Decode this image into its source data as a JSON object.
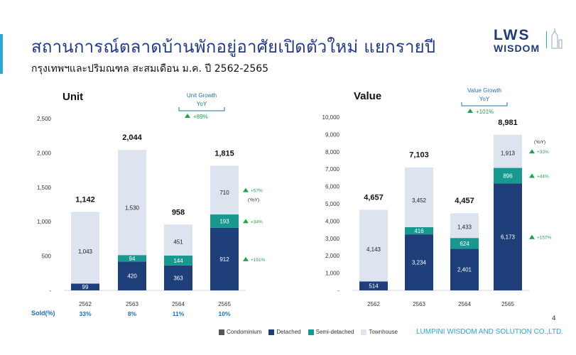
{
  "title": "สถานการณ์ตลาดบ้านพักอยู่อาศัยเปิดตัวใหม่ แยกรายปี",
  "subtitle": "กรุงเทพฯและปริมณฑล สะสมเดือน ม.ค. ปี 2562-2565",
  "logo": {
    "line1": "LWS",
    "line2": "WISDOM"
  },
  "footer": {
    "company": "LUMPINI WISDOM AND SOLUTION CO.,LTD.",
    "page_number": "4"
  },
  "sold_label": "Sold(%)",
  "colors": {
    "condominium": "#555555",
    "detached": "#1e3f7a",
    "semi_detached": "#17998f",
    "townhouse": "#dde4ef",
    "growth_green": "#22a04b",
    "title_blue": "#233a8b"
  },
  "legend": [
    {
      "label": "Condominium",
      "color": "#555555"
    },
    {
      "label": "Detached",
      "color": "#1e3f7a"
    },
    {
      "label": "Semi-detached",
      "color": "#17998f"
    },
    {
      "label": "Townhouse",
      "color": "#dde4ef"
    }
  ],
  "chart_data": [
    {
      "type": "bar",
      "stacked": true,
      "title": "Unit",
      "categories": [
        "2562",
        "2563",
        "2564",
        "2565"
      ],
      "series": [
        {
          "name": "Detached",
          "values": [
            99,
            420,
            363,
            912
          ]
        },
        {
          "name": "Semi-detached",
          "values": [
            0,
            94,
            144,
            193
          ]
        },
        {
          "name": "Townhouse",
          "values": [
            1043,
            1530,
            451,
            710
          ]
        }
      ],
      "segment_labels": [
        [
          "99",
          "",
          "1,043"
        ],
        [
          "420",
          "94",
          "1,530"
        ],
        [
          "363",
          "144",
          "451"
        ],
        [
          "912",
          "193",
          "710"
        ]
      ],
      "totals": [
        "1,142",
        "2,044",
        "958",
        "1,815"
      ],
      "ylim": [
        0,
        2500
      ],
      "yticks": [
        "-",
        "500",
        "1,000",
        "1,500",
        "2,000",
        "2,500"
      ],
      "sold_pct": [
        "33%",
        "8%",
        "11%",
        "10%"
      ],
      "growth_box": {
        "title": "Unit Growth",
        "yoy_label": "YoY",
        "value": "+89%"
      },
      "yoy_header": "(YoY)",
      "yoy_segments": [
        "+151%",
        "+34%",
        "+57%"
      ]
    },
    {
      "type": "bar",
      "stacked": true,
      "title": "Value",
      "categories": [
        "2562",
        "2563",
        "2564",
        "2565"
      ],
      "series": [
        {
          "name": "Detached",
          "values": [
            514,
            3234,
            2401,
            6173
          ]
        },
        {
          "name": "Semi-detached",
          "values": [
            0,
            416,
            624,
            896
          ]
        },
        {
          "name": "Townhouse",
          "values": [
            4143,
            3452,
            1433,
            1913
          ]
        }
      ],
      "segment_labels": [
        [
          "514",
          "",
          "4,143"
        ],
        [
          "3,234",
          "416",
          "3,452"
        ],
        [
          "2,401",
          "624",
          "1,433"
        ],
        [
          "6,173",
          "896",
          "1,913"
        ]
      ],
      "totals": [
        "4,657",
        "7,103",
        "4,457",
        "8,981"
      ],
      "ylim": [
        0,
        10000
      ],
      "yticks": [
        "-",
        "1,000",
        "2,000",
        "3,000",
        "4,000",
        "5,000",
        "6,000",
        "7,000",
        "8,000",
        "9,000",
        "10,000"
      ],
      "growth_box": {
        "title": "Value Growth",
        "yoy_label": "YoY",
        "value": "+101%"
      },
      "yoy_header": "(YoY)",
      "yoy_segments": [
        "+157%",
        "+44%",
        "+33%"
      ]
    }
  ]
}
